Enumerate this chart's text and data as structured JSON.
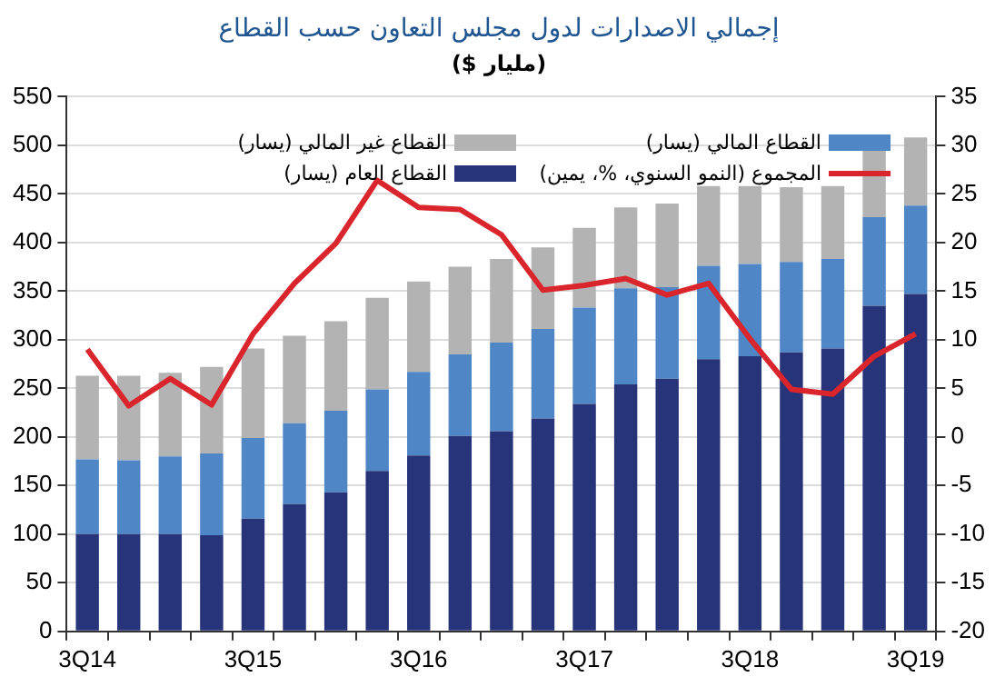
{
  "chart_data": {
    "type": "bar",
    "title": "إجمالي الاصدارات لدول مجلس التعاون حسب القطاع",
    "subtitle": "($ مليار)",
    "categories": [
      "3Q14",
      null,
      null,
      null,
      "3Q15",
      null,
      null,
      null,
      "3Q16",
      null,
      null,
      null,
      "3Q17",
      null,
      null,
      null,
      "3Q18",
      null,
      null,
      null,
      "3Q19"
    ],
    "stacked": true,
    "series": [
      {
        "name": "القطاع العام (يسار)",
        "color": "#27347a",
        "values": [
          100,
          100,
          100,
          99,
          116,
          131,
          143,
          165,
          181,
          201,
          206,
          219,
          234,
          254,
          260,
          280,
          283,
          287,
          291,
          335,
          347
        ]
      },
      {
        "name": "القطاع المالي (يسار)",
        "color": "#4f86c6",
        "values": [
          77,
          76,
          80,
          84,
          83,
          83,
          84,
          84,
          86,
          84,
          91,
          92,
          99,
          99,
          94,
          96,
          95,
          93,
          92,
          91,
          91
        ]
      },
      {
        "name": "القطاع غير المالي (يسار)",
        "color": "#b3b3b3",
        "values": [
          86,
          87,
          86,
          89,
          92,
          90,
          92,
          94,
          93,
          90,
          86,
          84,
          82,
          83,
          86,
          82,
          80,
          77,
          75,
          71,
          70
        ]
      },
      {
        "name": "المجموع (النمو السنوي، %، يمين)",
        "type": "line",
        "axis": "y2",
        "color": "#d9252b",
        "marker": "none",
        "values": [
          9.0,
          3.2,
          6.0,
          3.3,
          10.6,
          15.8,
          19.9,
          26.4,
          23.6,
          23.4,
          20.8,
          15.1,
          15.6,
          16.3,
          14.6,
          15.8,
          10.1,
          4.9,
          4.4,
          8.3,
          10.6
        ]
      }
    ],
    "ylim": [
      0,
      550
    ],
    "yticks": [
      0,
      50,
      100,
      150,
      200,
      250,
      300,
      350,
      400,
      450,
      500,
      550
    ],
    "y2lim": [
      -20,
      35
    ],
    "y2ticks": [
      -20,
      -15,
      -10,
      -5,
      0,
      5,
      10,
      15,
      20,
      25,
      30,
      35
    ],
    "grid": "y",
    "legend": "top"
  }
}
